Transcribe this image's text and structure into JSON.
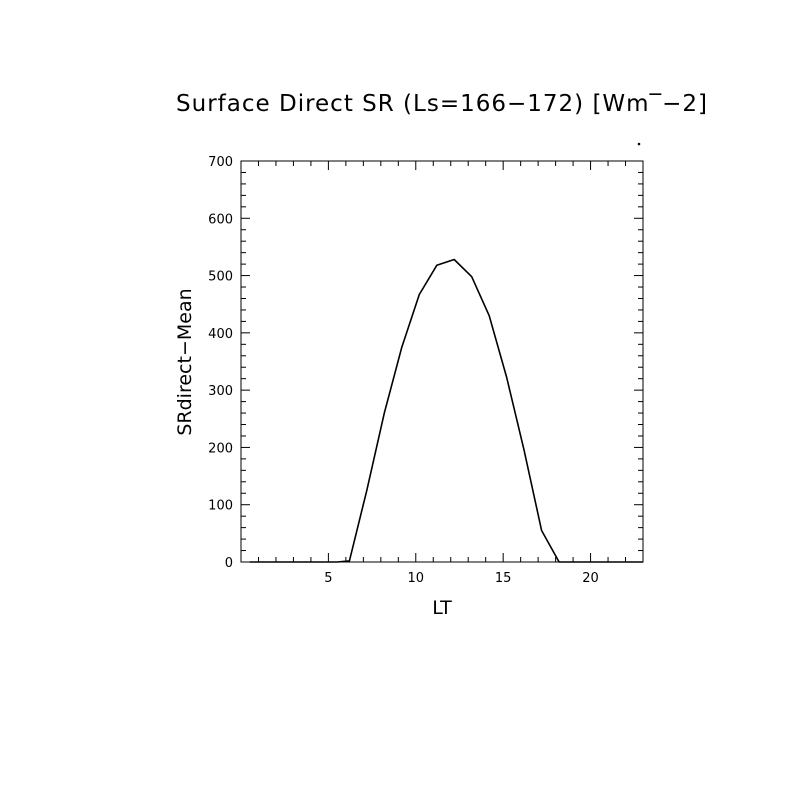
{
  "chart_data": {
    "type": "line",
    "title": "Surface Direct SR (Ls=166−172) [Wm‾−2]",
    "xlabel": "LT",
    "ylabel": "SRdirect−Mean",
    "xlim": [
      0,
      23
    ],
    "ylim": [
      0,
      700
    ],
    "xticks": [
      5,
      10,
      15,
      20
    ],
    "yticks": [
      0,
      100,
      200,
      300,
      400,
      500,
      600,
      700
    ],
    "grid": false,
    "series": [
      {
        "x": [
          0.5,
          1.5,
          2.5,
          3.5,
          4.5,
          5.5,
          6.2,
          7.2,
          8.2,
          9.2,
          10.2,
          11.2,
          12.2,
          13.2,
          14.2,
          15.2,
          16.2,
          17.2,
          18.2,
          19.2,
          20.2,
          21.2,
          22.2,
          23.0
        ],
        "y": [
          0,
          0,
          0,
          0,
          0,
          0,
          2,
          125,
          260,
          375,
          467,
          518,
          528,
          498,
          430,
          322,
          195,
          55,
          0,
          0,
          0,
          0,
          0,
          0
        ]
      }
    ]
  }
}
